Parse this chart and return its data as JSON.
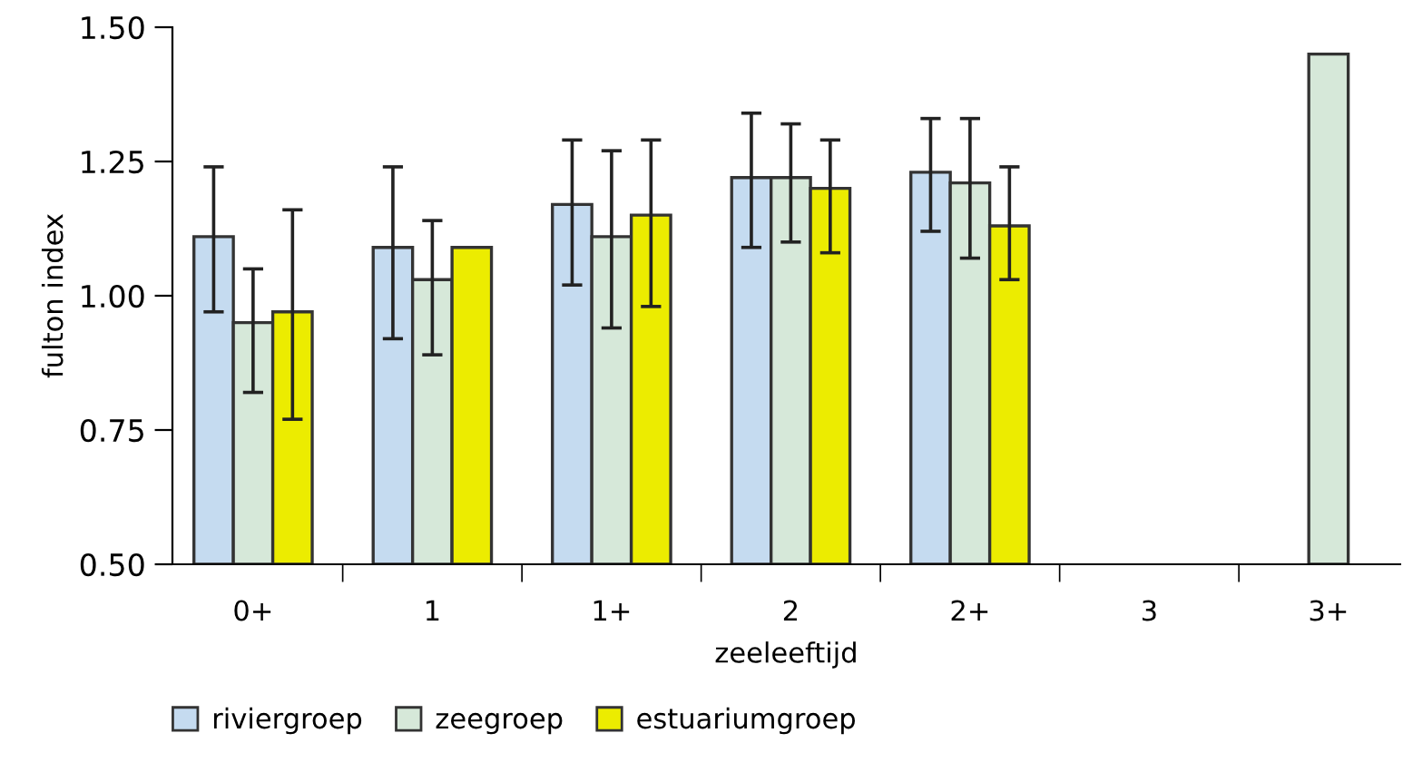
{
  "chart_data": {
    "type": "bar",
    "xlabel": "zeeleeftijd",
    "ylabel": "fulton index",
    "categories": [
      "0+",
      "1",
      "1+",
      "2",
      "2+",
      "3",
      "3+"
    ],
    "ylim": [
      0.5,
      1.5
    ],
    "yticks": [
      {
        "value": 0.5,
        "label": "0.50"
      },
      {
        "value": 0.75,
        "label": "0.75"
      },
      {
        "value": 1.0,
        "label": "1.00"
      },
      {
        "value": 1.25,
        "label": "1.25"
      },
      {
        "value": 1.5,
        "label": "1.50"
      }
    ],
    "grid": false,
    "legend": "bottom",
    "series": [
      {
        "name": "riviergroep",
        "color": "#c5dbf0",
        "values": [
          1.11,
          1.09,
          1.17,
          1.22,
          1.23,
          null,
          null
        ],
        "errors": [
          [
            0.97,
            1.24
          ],
          [
            0.92,
            1.24
          ],
          [
            1.02,
            1.29
          ],
          [
            1.09,
            1.34
          ],
          [
            1.12,
            1.33
          ],
          null,
          null
        ]
      },
      {
        "name": "zeegroep",
        "color": "#d6e8d9",
        "values": [
          0.95,
          1.03,
          1.11,
          1.22,
          1.21,
          null,
          1.45
        ],
        "errors": [
          [
            0.82,
            1.05
          ],
          [
            0.89,
            1.14
          ],
          [
            0.94,
            1.27
          ],
          [
            1.1,
            1.32
          ],
          [
            1.07,
            1.33
          ],
          null,
          null
        ]
      },
      {
        "name": "estuariumgroep",
        "color": "#ecec00",
        "values": [
          0.97,
          1.09,
          1.15,
          1.2,
          1.13,
          null,
          null
        ],
        "errors": [
          [
            0.77,
            1.16
          ],
          null,
          [
            0.98,
            1.29
          ],
          [
            1.08,
            1.29
          ],
          [
            1.03,
            1.24
          ],
          null,
          null
        ]
      }
    ]
  }
}
